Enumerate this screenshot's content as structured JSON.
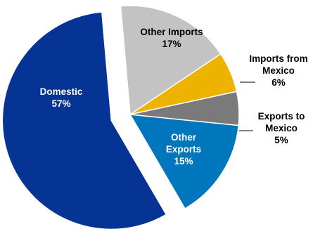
{
  "chart_data": {
    "type": "pie",
    "start_angle_deg": -5,
    "slices": [
      {
        "id": "other-imports",
        "lines": [
          "Other Imports",
          "17%"
        ],
        "value": 17,
        "color": "#c3c3c3",
        "text_color": "#000000"
      },
      {
        "id": "imports-from-mexico",
        "lines": [
          "Imports from",
          "Mexico",
          "6%"
        ],
        "value": 6,
        "color": "#eeb300",
        "text_color": "#000000"
      },
      {
        "id": "exports-to-mexico",
        "lines": [
          "Exports to",
          "Mexico",
          "5%"
        ],
        "value": 5,
        "color": "#7a7a7a",
        "text_color": "#000000"
      },
      {
        "id": "other-exports",
        "lines": [
          "Other",
          "Exports",
          "15%"
        ],
        "value": 15,
        "color": "#0077bd",
        "text_color": "#ffffff"
      },
      {
        "id": "domestic",
        "lines": [
          "Domestic",
          "57%"
        ],
        "value": 57,
        "color": "#063494",
        "text_color": "#ffffff",
        "exploded": true
      }
    ]
  }
}
